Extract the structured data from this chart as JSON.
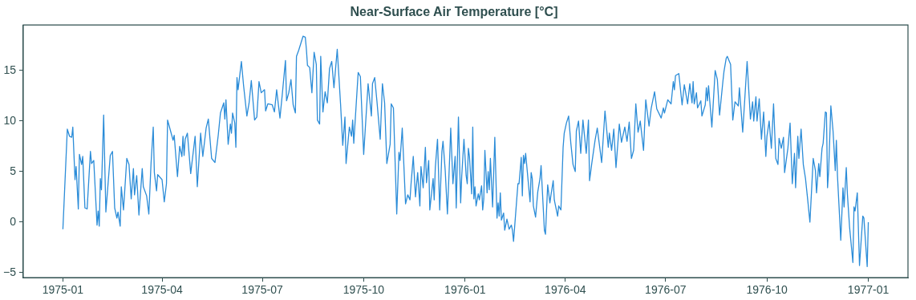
{
  "chart_data": {
    "type": "line",
    "title": "Near-Surface Air Temperature [°C]",
    "color": "#2b8cd8",
    "marker": "none",
    "line_style": "solid",
    "grid": false,
    "legend": false,
    "xlim": [
      "1974-11-26",
      "1977-02-06"
    ],
    "xticks": [
      "1975-01",
      "1975-04",
      "1975-07",
      "1975-10",
      "1976-01",
      "1976-04",
      "1976-07",
      "1976-10",
      "1977-01"
    ],
    "ylim": [
      -5.5,
      19.5
    ],
    "yticks": [
      {
        "value": -5,
        "label": "−5"
      },
      0,
      5,
      10,
      15
    ],
    "x": [
      "1975-01-01",
      "1975-01-05",
      "1975-01-07",
      "1975-01-09",
      "1975-01-10",
      "1975-01-12",
      "1975-01-13",
      "1975-01-15",
      "1975-01-16",
      "1975-01-18",
      "1975-01-19",
      "1975-01-21",
      "1975-01-23",
      "1975-01-26",
      "1975-01-27",
      "1975-01-29",
      "1975-02-01",
      "1975-02-02",
      "1975-02-03",
      "1975-02-04",
      "1975-02-05",
      "1975-02-07",
      "1975-02-09",
      "1975-02-13",
      "1975-02-15",
      "1975-02-17",
      "1975-02-19",
      "1975-02-20",
      "1975-02-22",
      "1975-02-23",
      "1975-02-25",
      "1975-02-28",
      "1975-03-02",
      "1975-03-04",
      "1975-03-06",
      "1975-03-07",
      "1975-03-09",
      "1975-03-11",
      "1975-03-14",
      "1975-03-15",
      "1975-03-18",
      "1975-03-20",
      "1975-03-22",
      "1975-03-24",
      "1975-03-25",
      "1975-03-27",
      "1975-03-28",
      "1975-04-01",
      "1975-04-03",
      "1975-04-05",
      "1975-04-06",
      "1975-04-09",
      "1975-04-11",
      "1975-04-12",
      "1975-04-15",
      "1975-04-17",
      "1975-04-19",
      "1975-04-20",
      "1975-04-21",
      "1975-04-22",
      "1975-04-24",
      "1975-04-27",
      "1975-05-01",
      "1975-05-03",
      "1975-05-06",
      "1975-05-08",
      "1975-05-11",
      "1975-05-13",
      "1975-05-16",
      "1975-05-19",
      "1975-05-22",
      "1975-05-24",
      "1975-05-27",
      "1975-05-28",
      "1975-05-29",
      "1975-05-31",
      "1975-06-02",
      "1975-06-03",
      "1975-06-04",
      "1975-06-06",
      "1975-06-07",
      "1975-06-08",
      "1975-06-09",
      "1975-06-12",
      "1975-06-14",
      "1975-06-17",
      "1975-06-19",
      "1975-06-21",
      "1975-06-24",
      "1975-06-26",
      "1975-06-28",
      "1975-06-30",
      "1975-07-03",
      "1975-07-04",
      "1975-07-06",
      "1975-07-10",
      "1975-07-12",
      "1975-07-14",
      "1975-07-17",
      "1975-07-19",
      "1975-07-22",
      "1975-07-23",
      "1975-07-25",
      "1975-07-27",
      "1975-07-29",
      "1975-07-31",
      "1975-08-01",
      "1975-08-03",
      "1975-08-07",
      "1975-08-09",
      "1975-08-10",
      "1975-08-11",
      "1975-08-13",
      "1975-08-15",
      "1975-08-17",
      "1975-08-19",
      "1975-08-20",
      "1975-08-22",
      "1975-08-23",
      "1975-08-25",
      "1975-08-27",
      "1975-08-29",
      "1975-08-31",
      "1975-09-02",
      "1975-09-04",
      "1975-09-07",
      "1975-09-10",
      "1975-09-12",
      "1975-09-14",
      "1975-09-15",
      "1975-09-18",
      "1975-09-20",
      "1975-09-21",
      "1975-09-22",
      "1975-09-26",
      "1975-09-28",
      "1975-10-01",
      "1975-10-05",
      "1975-10-08",
      "1975-10-09",
      "1975-10-11",
      "1975-10-13",
      "1975-10-16",
      "1975-10-18",
      "1975-10-20",
      "1975-10-22",
      "1975-10-25",
      "1975-10-26",
      "1975-10-28",
      "1975-10-31",
      "1975-11-02",
      "1975-11-03",
      "1975-11-05",
      "1975-11-08",
      "1975-11-10",
      "1975-11-12",
      "1975-11-13",
      "1975-11-15",
      "1975-11-17",
      "1975-11-19",
      "1975-11-21",
      "1975-11-22",
      "1975-11-24",
      "1975-11-26",
      "1975-11-27",
      "1975-11-29",
      "1975-11-30",
      "1975-12-03",
      "1975-12-04",
      "1975-12-05",
      "1975-12-07",
      "1975-12-09",
      "1975-12-11",
      "1975-12-12",
      "1975-12-14",
      "1975-12-16",
      "1975-12-18",
      "1975-12-19",
      "1975-12-21",
      "1975-12-23",
      "1975-12-24",
      "1975-12-26",
      "1975-12-28",
      "1975-12-29",
      "1975-12-31",
      "1976-01-02",
      "1976-01-03",
      "1976-01-04",
      "1976-01-05",
      "1976-01-07",
      "1976-01-08",
      "1976-01-09",
      "1976-01-10",
      "1976-01-11",
      "1976-01-13",
      "1976-01-14",
      "1976-01-16",
      "1976-01-17",
      "1976-01-18",
      "1976-01-19",
      "1976-01-21",
      "1976-01-22",
      "1976-01-23",
      "1976-01-24",
      "1976-01-26",
      "1976-01-28",
      "1976-01-30",
      "1976-01-31",
      "1976-02-01",
      "1976-02-02",
      "1976-02-03",
      "1976-02-05",
      "1976-02-06",
      "1976-02-08",
      "1976-02-10",
      "1976-02-12",
      "1976-02-13",
      "1976-02-14",
      "1976-02-18",
      "1976-02-19",
      "1976-02-21",
      "1976-02-22",
      "1976-02-23",
      "1976-02-24",
      "1976-02-25",
      "1976-02-29",
      "1976-03-01",
      "1976-03-02",
      "1976-03-03",
      "1976-03-05",
      "1976-03-07",
      "1976-03-09",
      "1976-03-10",
      "1976-03-13",
      "1976-03-14",
      "1976-03-16",
      "1976-03-18",
      "1976-03-19",
      "1976-03-21",
      "1976-03-22",
      "1976-03-25",
      "1976-03-26",
      "1976-03-28",
      "1976-03-30",
      "1976-03-31",
      "1976-04-02",
      "1976-04-04",
      "1976-04-06",
      "1976-04-08",
      "1976-04-10",
      "1976-04-11",
      "1976-04-13",
      "1976-04-15",
      "1976-04-17",
      "1976-04-20",
      "1976-04-22",
      "1976-04-23",
      "1976-04-25",
      "1976-04-28",
      "1976-04-30",
      "1976-05-04",
      "1976-05-07",
      "1976-05-10",
      "1976-05-11",
      "1976-05-13",
      "1976-05-15",
      "1976-05-17",
      "1976-05-20",
      "1976-05-22",
      "1976-05-25",
      "1976-05-27",
      "1976-05-29",
      "1976-05-31",
      "1976-06-02",
      "1976-06-04",
      "1976-06-06",
      "1976-06-08",
      "1976-06-11",
      "1976-06-13",
      "1976-06-16",
      "1976-06-18",
      "1976-06-21",
      "1976-06-23",
      "1976-06-27",
      "1976-06-29",
      "1976-06-30",
      "1976-07-03",
      "1976-07-06",
      "1976-07-08",
      "1976-07-09",
      "1976-07-10",
      "1976-07-13",
      "1976-07-16",
      "1976-07-18",
      "1976-07-21",
      "1976-07-23",
      "1976-07-25",
      "1976-07-26",
      "1976-07-27",
      "1976-07-29",
      "1976-07-30",
      "1976-08-02",
      "1976-08-03",
      "1976-08-06",
      "1976-08-07",
      "1976-08-08",
      "1976-08-09",
      "1976-08-12",
      "1976-08-15",
      "1976-08-17",
      "1976-08-19",
      "1976-08-22",
      "1976-08-23",
      "1976-08-25",
      "1976-08-26",
      "1976-08-29",
      "1976-08-31",
      "1976-09-02",
      "1976-09-05",
      "1976-09-06",
      "1976-09-09",
      "1976-09-13",
      "1976-09-16",
      "1976-09-18",
      "1976-09-19",
      "1976-09-21",
      "1976-09-22",
      "1976-09-24",
      "1976-09-26",
      "1976-09-28",
      "1976-09-30",
      "1976-10-01",
      "1976-10-03",
      "1976-10-05",
      "1976-10-07",
      "1976-10-09",
      "1976-10-11",
      "1976-10-12",
      "1976-10-14",
      "1976-10-16",
      "1976-10-17",
      "1976-10-20",
      "1976-10-22",
      "1976-10-24",
      "1976-10-26",
      "1976-10-27",
      "1976-10-29",
      "1976-10-30",
      "1976-11-01",
      "1976-11-03",
      "1976-11-05",
      "1976-11-07",
      "1976-11-09",
      "1976-11-12",
      "1976-11-14",
      "1976-11-15",
      "1976-11-17",
      "1976-11-18",
      "1976-11-20",
      "1976-11-21",
      "1976-11-23",
      "1976-11-24",
      "1976-11-25",
      "1976-11-26",
      "1976-11-28",
      "1976-11-30",
      "1976-12-02",
      "1976-12-03",
      "1976-12-04",
      "1976-12-07",
      "1976-12-09",
      "1976-12-10",
      "1976-12-12",
      "1976-12-13",
      "1976-12-15",
      "1976-12-18",
      "1976-12-19",
      "1976-12-20",
      "1976-12-22",
      "1976-12-24",
      "1976-12-27",
      "1976-12-28",
      "1976-12-31",
      "1977-01-01"
    ],
    "values": [
      -0.7,
      9.2,
      8.5,
      8.4,
      9.4,
      4.2,
      5.5,
      1.3,
      6.7,
      5.7,
      6.5,
      1.4,
      1.3,
      7.0,
      5.8,
      6.1,
      -0.3,
      1.1,
      -0.4,
      4.3,
      3.2,
      10.6,
      1.0,
      6.6,
      7.0,
      1.4,
      0.4,
      1.0,
      -0.4,
      3.5,
      1.2,
      6.3,
      5.7,
      2.3,
      5.3,
      2.7,
      4.6,
      0.7,
      5.3,
      3.5,
      2.6,
      0.8,
      5.8,
      9.4,
      4.9,
      3.1,
      4.7,
      4.2,
      2.0,
      3.8,
      10.1,
      8.9,
      8.1,
      8.6,
      4.5,
      7.5,
      6.5,
      8.5,
      6.6,
      8.2,
      8.8,
      4.8,
      8.5,
      3.5,
      8.8,
      6.5,
      9.3,
      10.2,
      6.3,
      5.9,
      8.6,
      10.8,
      11.8,
      10.2,
      12.1,
      7.7,
      9.7,
      8.8,
      10.8,
      9.8,
      7.4,
      14.3,
      13.1,
      15.9,
      13.5,
      10.5,
      11.8,
      14.0,
      10.1,
      10.4,
      13.9,
      12.8,
      13.1,
      11.0,
      11.7,
      11.6,
      10.9,
      13.1,
      10.3,
      12.5,
      16.0,
      12.0,
      12.8,
      14.1,
      11.6,
      10.8,
      16.4,
      17.0,
      18.4,
      18.3,
      17.1,
      15.5,
      15.3,
      12.8,
      16.8,
      15.6,
      10.1,
      9.7,
      16.4,
      10.9,
      12.9,
      11.8,
      15.2,
      15.9,
      13.3,
      17.1,
      11.7,
      7.6,
      10.4,
      5.8,
      9.4,
      8.5,
      10.1,
      7.8,
      14.8,
      14.4,
      6.7,
      13.7,
      10.5,
      13.7,
      14.3,
      12.0,
      8.2,
      13.7,
      11.8,
      5.8,
      7.7,
      11.7,
      11.3,
      0.8,
      6.9,
      6.1,
      9.3,
      1.8,
      2.7,
      2.2,
      3.8,
      6.5,
      2.5,
      4.9,
      1.6,
      5.5,
      3.4,
      7.4,
      3.9,
      6.1,
      1.2,
      4.3,
      2.2,
      5.4,
      8.2,
      1.2,
      7.0,
      8.0,
      5.1,
      0.8,
      6.3,
      9.3,
      3.8,
      6.5,
      1.4,
      10.4,
      1.9,
      4.6,
      8.2,
      4.6,
      3.8,
      7.3,
      6.5,
      2.8,
      9.4,
      2.3,
      3.5,
      1.6,
      2.8,
      2.2,
      3.6,
      1.2,
      2.3,
      7.1,
      2.9,
      5.0,
      3.2,
      6.3,
      1.5,
      8.4,
      0.4,
      1.9,
      0.6,
      2.9,
      0.2,
      0.9,
      -0.8,
      0.3,
      -0.7,
      -0.3,
      -0.8,
      -1.9,
      3.8,
      3.8,
      6.4,
      2.6,
      6.6,
      5.8,
      6.8,
      2.0,
      4.9,
      4.3,
      1.6,
      0.5,
      3.0,
      4.3,
      5.6,
      -0.8,
      -1.2,
      3.7,
      1.9,
      2.7,
      4.1,
      2.2,
      0.6,
      1.6,
      1.2,
      7.4,
      8.8,
      9.8,
      10.5,
      7.8,
      5.7,
      5.0,
      9.0,
      10.0,
      6.8,
      10.1,
      6.8,
      10.1,
      4.1,
      5.8,
      8.1,
      9.3,
      5.9,
      11.0,
      7.4,
      8.8,
      7.1,
      9.2,
      5.4,
      9.7,
      7.9,
      9.4,
      8.0,
      9.9,
      6.3,
      7.1,
      11.7,
      8.9,
      10.0,
      7.1,
      12.1,
      9.5,
      11.3,
      12.9,
      11.2,
      10.3,
      11.3,
      10.8,
      12.1,
      11.7,
      13.9,
      13.1,
      14.5,
      14.7,
      11.6,
      13.6,
      11.7,
      13.7,
      11.8,
      13.9,
      11.7,
      12.8,
      11.3,
      12.0,
      10.5,
      11.6,
      13.3,
      12.0,
      13.5,
      9.4,
      15.0,
      14.1,
      10.6,
      13.9,
      14.9,
      16.2,
      16.4,
      15.6,
      10.1,
      11.9,
      11.5,
      13.3,
      8.9,
      15.9,
      10.2,
      11.9,
      10.0,
      12.4,
      10.0,
      12.2,
      8.2,
      10.9,
      6.5,
      8.5,
      10.0,
      7.3,
      11.7,
      6.3,
      5.7,
      8.3,
      7.3,
      8.4,
      4.9,
      7.3,
      9.8,
      3.8,
      6.8,
      3.4,
      8.5,
      6.3,
      9.2,
      5.7,
      4.3,
      2.2,
      0.0,
      6.3,
      5.1,
      2.9,
      5.8,
      4.5,
      7.3,
      7.8,
      10.9,
      10.8,
      3.4,
      5.1,
      11.5,
      9.0,
      5.1,
      8.1,
      4.6,
      -1.8,
      3.4,
      1.5,
      5.4,
      2.8,
      -0.5,
      -4.0,
      1.5,
      1.1,
      2.9,
      -4.3,
      0.6,
      0.4,
      -4.4,
      0.0
    ]
  }
}
